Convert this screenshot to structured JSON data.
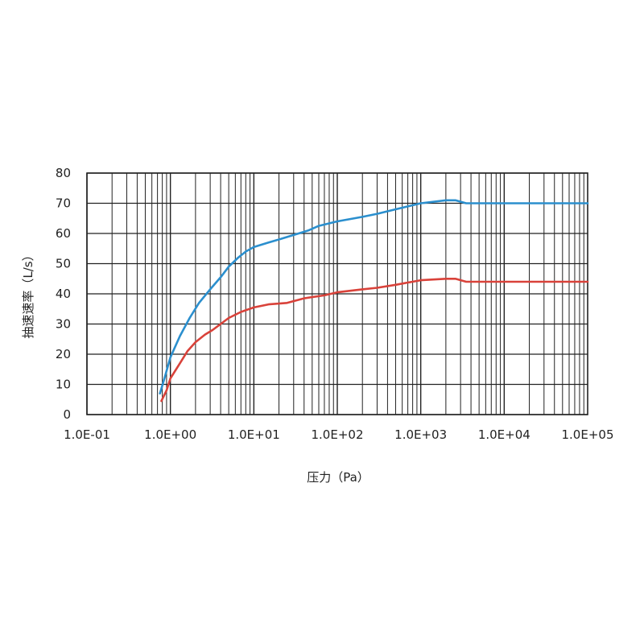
{
  "chart_data": {
    "type": "line",
    "xlabel": "压力（Pa）",
    "ylabel": "抽速速率（L/s）",
    "xscale": "log",
    "xlim": [
      "1.0E-01",
      "1.0E+05"
    ],
    "ylim": [
      0,
      80
    ],
    "grid": true,
    "x_tick_labels": [
      "1.0E-01",
      "1.0E+00",
      "1.0E+01",
      "1.0E+02",
      "1.0E+03",
      "1.0E+04",
      "1.0E+05"
    ],
    "y_tick_labels": [
      "0",
      "10",
      "20",
      "30",
      "40",
      "50",
      "60",
      "70",
      "80"
    ],
    "series": [
      {
        "color": "#2b8fce",
        "points": [
          [
            0.75,
            7
          ],
          [
            0.85,
            12
          ],
          [
            1.0,
            19
          ],
          [
            1.3,
            26
          ],
          [
            1.7,
            32
          ],
          [
            2.2,
            37
          ],
          [
            3.0,
            41.5
          ],
          [
            4.0,
            45.5
          ],
          [
            5.0,
            49
          ],
          [
            6.5,
            52
          ],
          [
            8.0,
            54
          ],
          [
            10,
            55.5
          ],
          [
            15,
            57
          ],
          [
            20,
            58
          ],
          [
            30,
            59.5
          ],
          [
            45,
            61
          ],
          [
            60,
            62.5
          ],
          [
            100,
            64
          ],
          [
            200,
            65.5
          ],
          [
            300,
            66.5
          ],
          [
            500,
            68
          ],
          [
            1000,
            70
          ],
          [
            2000,
            71
          ],
          [
            2600,
            71
          ],
          [
            3500,
            70
          ],
          [
            10000,
            70
          ],
          [
            100000,
            70
          ]
        ]
      },
      {
        "color": "#d9423a",
        "points": [
          [
            0.78,
            4.5
          ],
          [
            0.9,
            8
          ],
          [
            1.0,
            12
          ],
          [
            1.3,
            17
          ],
          [
            1.6,
            21
          ],
          [
            2.0,
            24
          ],
          [
            2.6,
            26.5
          ],
          [
            3.2,
            28
          ],
          [
            4.0,
            30
          ],
          [
            5.0,
            32
          ],
          [
            7.0,
            34
          ],
          [
            10,
            35.5
          ],
          [
            15,
            36.5
          ],
          [
            25,
            37
          ],
          [
            40,
            38.5
          ],
          [
            70,
            39.5
          ],
          [
            100,
            40.5
          ],
          [
            200,
            41.5
          ],
          [
            300,
            42
          ],
          [
            500,
            43
          ],
          [
            1000,
            44.5
          ],
          [
            2000,
            45
          ],
          [
            2600,
            45
          ],
          [
            3500,
            44
          ],
          [
            10000,
            44
          ],
          [
            100000,
            44
          ]
        ]
      }
    ]
  }
}
